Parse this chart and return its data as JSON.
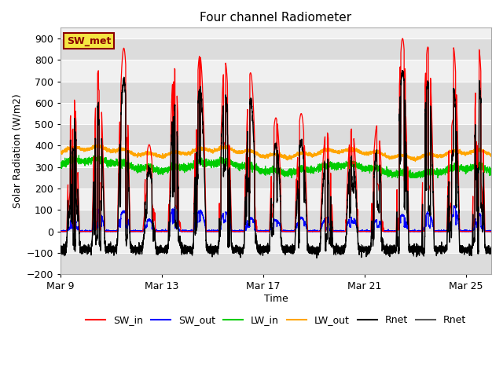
{
  "title": "Four channel Radiometer",
  "xlabel": "Time",
  "ylabel": "Solar Radiation (W/m2)",
  "ylim": [
    -200,
    950
  ],
  "yticks": [
    -200,
    -100,
    0,
    100,
    200,
    300,
    400,
    500,
    600,
    700,
    800,
    900
  ],
  "annotation_text": "SW_met",
  "annotation_color": "#8B0000",
  "annotation_bg": "#F5E642",
  "bg_color": "#EBEBEB",
  "plot_bg": "#F0F0F0",
  "colors": {
    "SW_in": "#FF0000",
    "SW_out": "#0000FF",
    "LW_in": "#00CC00",
    "LW_out": "#FFA500",
    "Rnet_black": "#000000",
    "Rnet_dark": "#555555"
  },
  "n_days": 17,
  "xstart": 9,
  "xend": 26,
  "xticks": [
    9,
    13,
    17,
    21,
    25
  ],
  "xtick_labels": [
    "Mar 9",
    "Mar 13",
    "Mar 17",
    "Mar 21",
    "Mar 25"
  ],
  "day_peaks": [
    650,
    750,
    855,
    405,
    760,
    820,
    790,
    740,
    530,
    550,
    470,
    480,
    495,
    900,
    860,
    860,
    855
  ],
  "pts_per_day": 288
}
